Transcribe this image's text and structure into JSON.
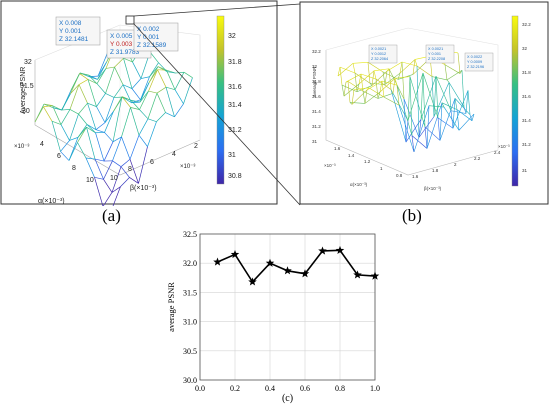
{
  "panel_a": {
    "caption": "(a)",
    "zlabel": "Average PSNR",
    "ylabel": "α(×10⁻³)",
    "xlabel": "β(×10⁻³)",
    "y_multiplier": "×10⁻³",
    "x_multiplier": "×10⁻³",
    "z_ticks": [
      "30",
      "31",
      "31.5",
      "32"
    ],
    "y_ticks": [
      "2",
      "4",
      "6",
      "8",
      "10"
    ],
    "x_ticks": [
      "2",
      "4",
      "6",
      "8",
      "10"
    ],
    "colorbar_ticks": [
      "32",
      "31.8",
      "31.6",
      "31.4",
      "31.2",
      "31",
      "30.8"
    ],
    "datatip1": {
      "x": "X 0.008",
      "y": "Y 0.001",
      "z": "Z 32.1481"
    },
    "datatip2": {
      "x": "X 0.005",
      "y": "Y 0.003",
      "z": "Z 31.9783"
    },
    "datatip3": {
      "x": "X 0.002",
      "y": "Y 0.001",
      "z": "Z 32.1589"
    }
  },
  "panel_b": {
    "caption": "(b)",
    "zlabel": "Average PSNR",
    "ylabel": "α(×10⁻³)",
    "xlabel": "β(×10⁻³)",
    "x_multiplier": "×10⁻³",
    "y_multiplier": "×10⁻³",
    "z_ticks": [
      "31",
      "31.2",
      "31.4",
      "31.6",
      "31.8",
      "32",
      "32.2"
    ],
    "y_ticks": [
      "0.8",
      "1",
      "1.2",
      "1.4",
      "1.6"
    ],
    "x_ticks": [
      "1.6",
      "1.8",
      "2",
      "2.2",
      "2.4"
    ],
    "colorbar_ticks": [
      "32.2",
      "32",
      "31.8",
      "31.6",
      "31.4",
      "31.2",
      "31"
    ],
    "datatip1": {
      "x": "X 0.0021",
      "y": "Y 0.0012",
      "z": "Z 32.2064"
    },
    "datatip2": {
      "x": "X 0.0021",
      "y": "Y 0.001",
      "z": "Z 32.2208"
    },
    "datatip3": {
      "x": "X 0.0022",
      "y": "Y 0.0009",
      "z": "Z 32.2196"
    }
  },
  "chart_data": [
    {
      "type": "line",
      "caption": "(c)",
      "ylabel": "average PSNR",
      "xlabel": "",
      "xlim": [
        0.0,
        1.0
      ],
      "ylim": [
        30.0,
        32.5
      ],
      "x_ticks": [
        "0.0",
        "0.2",
        "0.4",
        "0.6",
        "0.8",
        "1.0"
      ],
      "y_ticks": [
        "30.0",
        "30.5",
        "31.0",
        "31.5",
        "32.0",
        "32.5"
      ],
      "grid": true,
      "marker": "star",
      "x": [
        0.1,
        0.2,
        0.3,
        0.4,
        0.5,
        0.6,
        0.7,
        0.8,
        0.9,
        1.0
      ],
      "values": [
        32.02,
        32.15,
        31.68,
        32.0,
        31.87,
        31.82,
        32.21,
        32.22,
        31.8,
        31.78
      ]
    }
  ]
}
